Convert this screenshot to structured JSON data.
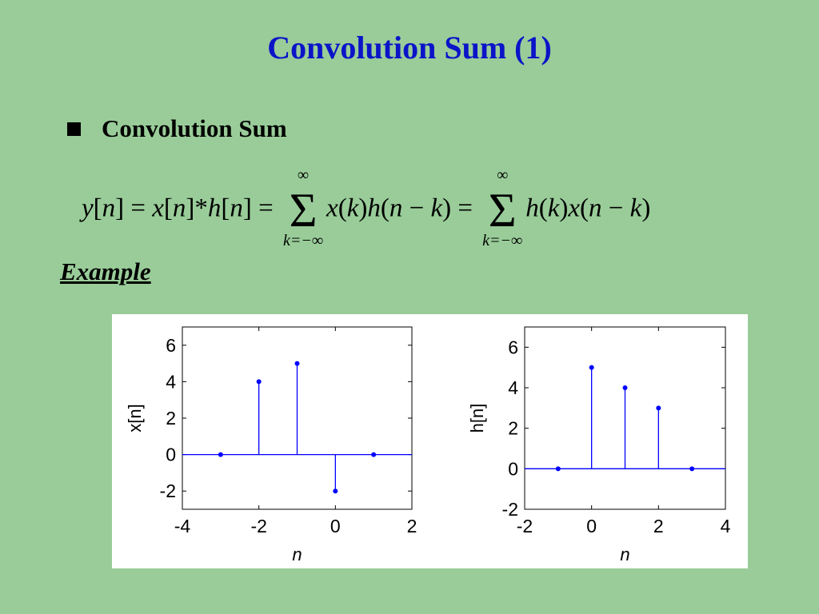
{
  "slide": {
    "title": "Convolution Sum (1)",
    "bullet": "Convolution Sum",
    "example_label": "Example",
    "formula": {
      "y": "y",
      "n": "n",
      "x": "x",
      "h": "h",
      "k": "k",
      "inf": "∞",
      "lower_limit": "k=−∞"
    }
  },
  "colors": {
    "background": "#99cc99",
    "title": "#0b14c8",
    "stem": "#0000ff"
  },
  "chart_data": [
    {
      "type": "stem",
      "ylabel": "x[n]",
      "xlabel": "n",
      "xlim": [
        -4,
        2
      ],
      "ylim": [
        -3,
        7
      ],
      "xticks": [
        -4,
        -2,
        0,
        2
      ],
      "yticks": [
        6,
        4,
        2,
        0,
        -2
      ],
      "baseline_range": [
        -4,
        2
      ],
      "x": [
        -3,
        -2,
        -1,
        0,
        1
      ],
      "values": [
        0,
        4,
        5,
        -2,
        0
      ]
    },
    {
      "type": "stem",
      "ylabel": "h[n]",
      "xlabel": "n",
      "xlim": [
        -2,
        4
      ],
      "ylim": [
        -2,
        7
      ],
      "xticks": [
        -2,
        0,
        2,
        4
      ],
      "yticks": [
        6,
        4,
        2,
        0,
        -2
      ],
      "baseline_range": [
        -2,
        4
      ],
      "x": [
        -1,
        0,
        1,
        2,
        3
      ],
      "values": [
        0,
        5,
        4,
        3,
        0
      ]
    }
  ]
}
